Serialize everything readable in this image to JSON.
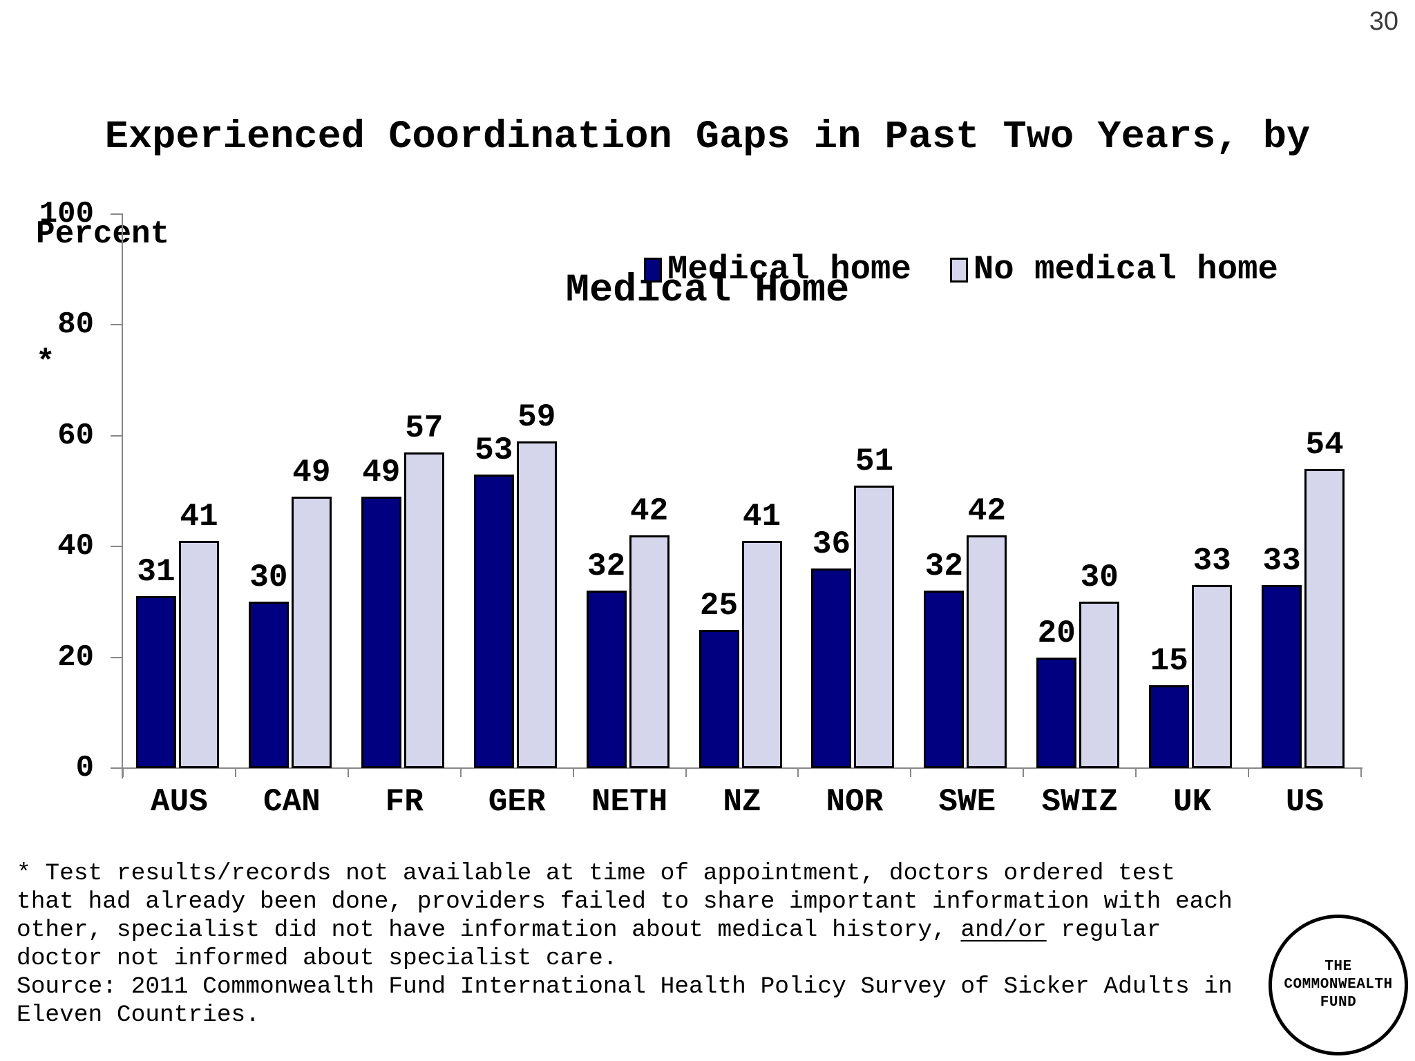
{
  "page": {
    "number": "30"
  },
  "title": {
    "line1": "Experienced Coordination Gaps in Past Two Years, by",
    "line2": "Medical Home"
  },
  "axis_note": {
    "label": "Percent",
    "asterisk": "*"
  },
  "legend": {
    "items": [
      {
        "label": "Medical home",
        "color": "#000080"
      },
      {
        "label": "No medical home",
        "color": "#D5D5EC"
      }
    ]
  },
  "chart_data": {
    "type": "bar",
    "title": "Experienced Coordination Gaps in Past Two Years, by Medical Home",
    "xlabel": "",
    "ylabel": "Percent",
    "ylim": [
      0,
      100
    ],
    "yticks": [
      0,
      20,
      40,
      60,
      80,
      100
    ],
    "grid": false,
    "legend_position": "top-right-inside",
    "categories": [
      "AUS",
      "CAN",
      "FR",
      "GER",
      "NETH",
      "NZ",
      "NOR",
      "SWE",
      "SWIZ",
      "UK",
      "US"
    ],
    "series": [
      {
        "name": "Medical home",
        "color": "#000080",
        "values": [
          31,
          30,
          49,
          53,
          32,
          25,
          36,
          32,
          20,
          15,
          33
        ]
      },
      {
        "name": "No medical home",
        "color": "#D5D5EC",
        "values": [
          41,
          49,
          57,
          59,
          42,
          41,
          51,
          42,
          30,
          33,
          54
        ]
      }
    ]
  },
  "footnote": {
    "lines": [
      "* Test results/records not available at time of appointment, doctors ordered test",
      "that had already been done, providers failed to share important information with each",
      "other, specialist did not have information about medical history, |and/or| regular",
      "doctor not informed about specialist care.",
      "Source: 2011 Commonwealth Fund International Health Policy Survey of Sicker Adults in",
      "Eleven Countries."
    ]
  },
  "logo": {
    "lines": [
      "THE",
      "COMMONWEALTH",
      "FUND"
    ]
  },
  "colors": {
    "axis": "#888888",
    "bar_border": "#000000"
  }
}
